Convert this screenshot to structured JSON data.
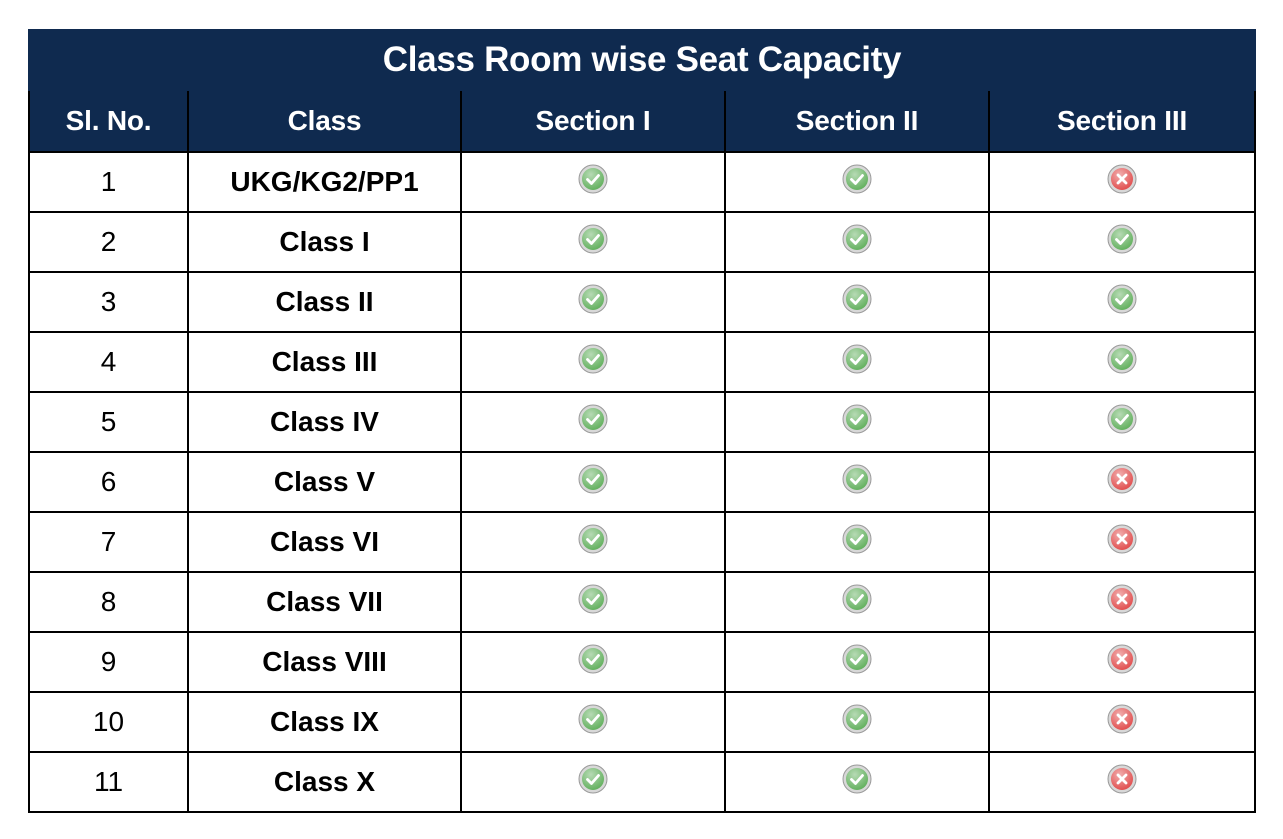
{
  "title": "Class Room wise Seat Capacity",
  "headers": [
    "Sl. No.",
    "Class",
    "Section I",
    "Section II",
    "Section III"
  ],
  "status_icons": {
    "available": {
      "icon": "check-circle-icon",
      "color": "#5fae5a"
    },
    "unavailable": {
      "icon": "cross-circle-icon",
      "color": "#e04a4a"
    }
  },
  "colors": {
    "header_bg": "#0f2a4f",
    "header_text": "#ffffff",
    "border": "#000000"
  },
  "rows": [
    {
      "sl": "1",
      "class": "UKG/KG2/PP1",
      "sections": [
        "available",
        "available",
        "unavailable"
      ]
    },
    {
      "sl": "2",
      "class": "Class I",
      "sections": [
        "available",
        "available",
        "available"
      ]
    },
    {
      "sl": "3",
      "class": "Class II",
      "sections": [
        "available",
        "available",
        "available"
      ]
    },
    {
      "sl": "4",
      "class": "Class III",
      "sections": [
        "available",
        "available",
        "available"
      ]
    },
    {
      "sl": "5",
      "class": "Class IV",
      "sections": [
        "available",
        "available",
        "available"
      ]
    },
    {
      "sl": "6",
      "class": "Class V",
      "sections": [
        "available",
        "available",
        "unavailable"
      ]
    },
    {
      "sl": "7",
      "class": "Class VI",
      "sections": [
        "available",
        "available",
        "unavailable"
      ]
    },
    {
      "sl": "8",
      "class": "Class VII",
      "sections": [
        "available",
        "available",
        "unavailable"
      ]
    },
    {
      "sl": "9",
      "class": "Class VIII",
      "sections": [
        "available",
        "available",
        "unavailable"
      ]
    },
    {
      "sl": "10",
      "class": "Class IX",
      "sections": [
        "available",
        "available",
        "unavailable"
      ]
    },
    {
      "sl": "11",
      "class": "Class X",
      "sections": [
        "available",
        "available",
        "unavailable"
      ]
    }
  ]
}
